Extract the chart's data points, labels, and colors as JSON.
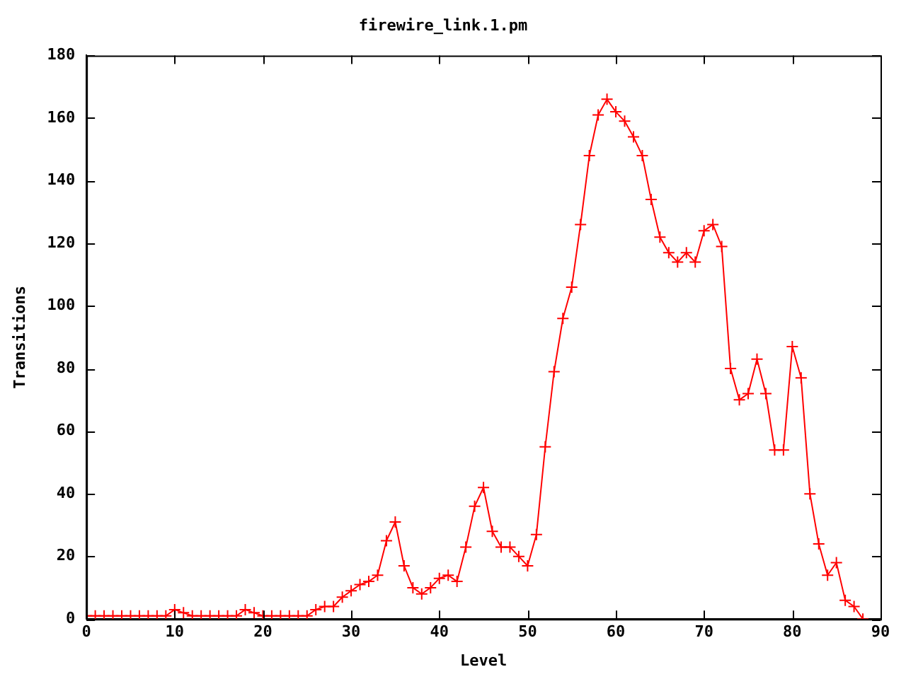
{
  "chart_data": {
    "type": "line",
    "title": "firewire_link.1.pm",
    "xlabel": "Level",
    "ylabel": "Transitions",
    "x": [
      0,
      1,
      2,
      3,
      4,
      5,
      6,
      7,
      8,
      9,
      10,
      11,
      12,
      13,
      14,
      15,
      16,
      17,
      18,
      19,
      20,
      21,
      22,
      23,
      24,
      25,
      26,
      27,
      28,
      29,
      30,
      31,
      32,
      33,
      34,
      35,
      36,
      37,
      38,
      39,
      40,
      41,
      42,
      43,
      44,
      45,
      46,
      47,
      48,
      49,
      50,
      51,
      52,
      53,
      54,
      55,
      56,
      57,
      58,
      59,
      60,
      61,
      62,
      63,
      64,
      65,
      66,
      67,
      68,
      69,
      70,
      71,
      72,
      73,
      74,
      75,
      76,
      77,
      78,
      79,
      80,
      81,
      82,
      83,
      84,
      85,
      86,
      87,
      88
    ],
    "series": [
      {
        "color": "#ff0000",
        "values": [
          1,
          1,
          1,
          1,
          1,
          1,
          1,
          1,
          1,
          1,
          3,
          2,
          1,
          1,
          1,
          1,
          1,
          1,
          3,
          2,
          1,
          1,
          1,
          1,
          1,
          1,
          3,
          4,
          4,
          7,
          9,
          11,
          12,
          14,
          25,
          31,
          17,
          10,
          8,
          10,
          13,
          14,
          12,
          23,
          36,
          42,
          28,
          23,
          23,
          20,
          17,
          27,
          55,
          79,
          96,
          106,
          126,
          148,
          161,
          166,
          162,
          159,
          154,
          148,
          134,
          122,
          117,
          114,
          117,
          114,
          124,
          126,
          119,
          80,
          70,
          72,
          83,
          72,
          54,
          54,
          87,
          77,
          40,
          24,
          14,
          18,
          6,
          4,
          0
        ]
      }
    ],
    "xlim": [
      0,
      90
    ],
    "xticks": [
      0,
      10,
      20,
      30,
      40,
      50,
      60,
      70,
      80,
      90
    ],
    "ylim": [
      0,
      180
    ],
    "yticks": [
      0,
      20,
      40,
      60,
      80,
      100,
      120,
      140,
      160,
      180
    ],
    "grid": false,
    "legend": false,
    "marker": "cross",
    "line_style": "solid"
  }
}
